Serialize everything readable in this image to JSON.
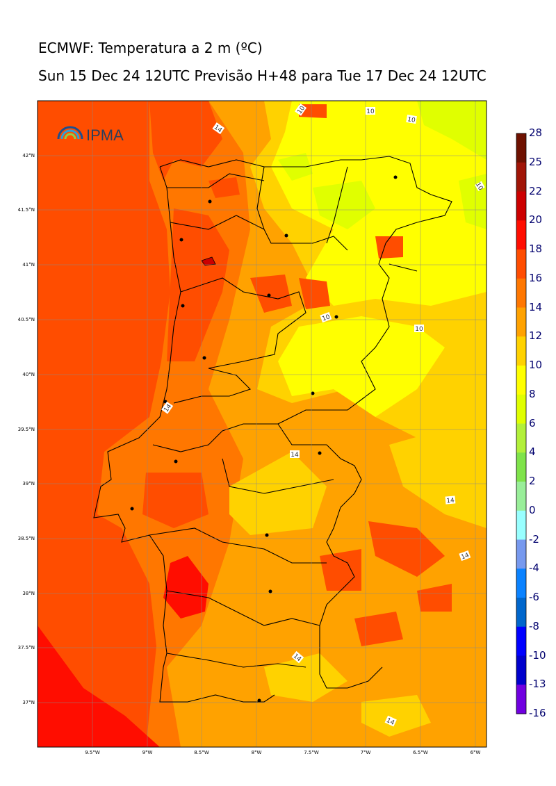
{
  "header": {
    "title": "ECMWF: Temperatura a 2 m (ºC)",
    "subtitle": "Sun 15 Dec 24 12UTC Previsão H+48 para Tue 17 Dec 24 12UTC"
  },
  "logo": {
    "text": "IPMA"
  },
  "map": {
    "x_ticks": [
      "9.5°W",
      "9°W",
      "8.5°W",
      "8°W",
      "7.5°W",
      "7°W",
      "6.5°W",
      "6°W"
    ],
    "y_ticks": [
      "42°N",
      "41.5°N",
      "41°N",
      "40.5°N",
      "40°N",
      "39.5°N",
      "39°N",
      "38.5°N",
      "38°N",
      "37.5°N",
      "37°N"
    ],
    "contour_labels": [
      "10",
      "10",
      "10",
      "10",
      "10",
      "10",
      "14",
      "14",
      "14",
      "14",
      "14",
      "14",
      "14",
      "14"
    ]
  },
  "colorbar": {
    "labels": [
      "28",
      "25",
      "22",
      "20",
      "18",
      "16",
      "14",
      "12",
      "10",
      "8",
      "6",
      "4",
      "2",
      "0",
      "-2",
      "-4",
      "-6",
      "-8",
      "-10",
      "-13",
      "-16"
    ],
    "colors": [
      "#6e1100",
      "#a01506",
      "#cc0000",
      "#ff0d00",
      "#ff4d00",
      "#ff7700",
      "#ffa200",
      "#ffd200",
      "#ffff00",
      "#e0ff00",
      "#b2f03a",
      "#7fe34a",
      "#99ee99",
      "#99ffff",
      "#7799ee",
      "#0a82ff",
      "#0066cc",
      "#0000ff",
      "#0000cc",
      "#7000e0",
      "#d800ff"
    ]
  }
}
